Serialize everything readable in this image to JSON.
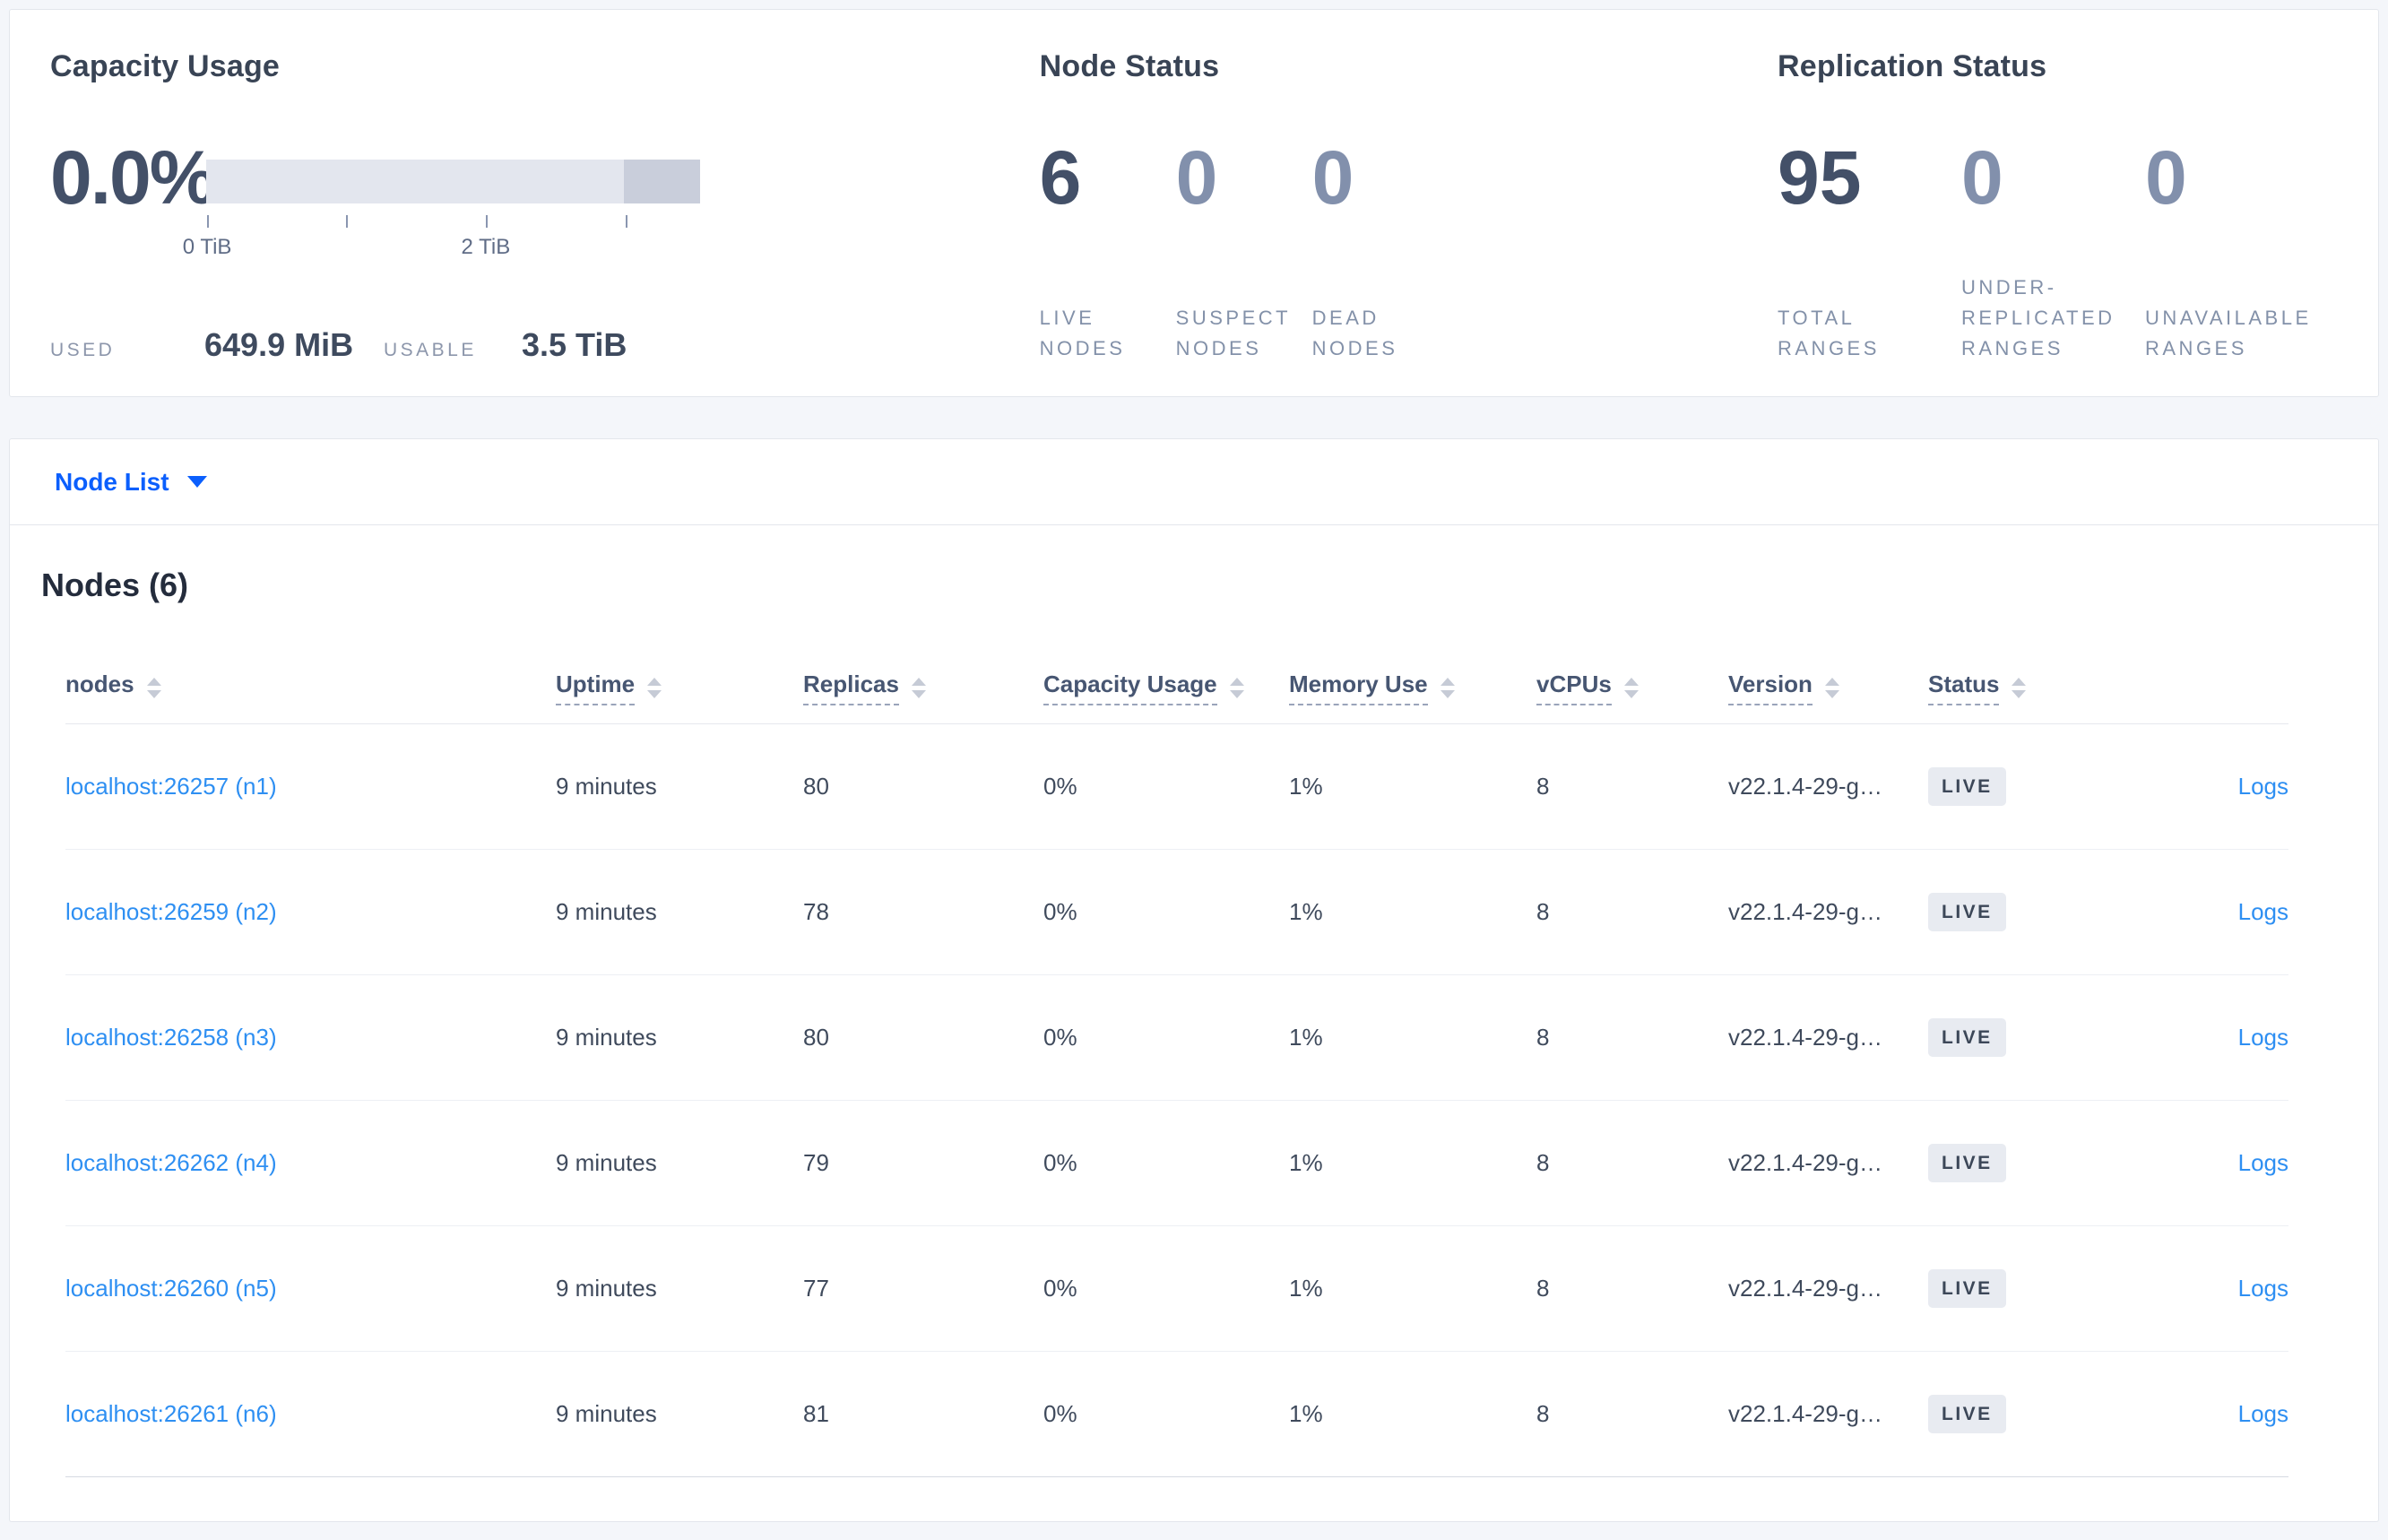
{
  "summary": {
    "capacity": {
      "title": "Capacity Usage",
      "percent": "0.0%",
      "used_label": "USED",
      "used_value": "649.9 MiB",
      "usable_label": "USABLE",
      "usable_value": "3.5 TiB",
      "meter": {
        "light_color": "#e3e6ee",
        "dark_color": "#c9cedb",
        "light_width": "84.6%",
        "dark_width": "15.4%",
        "ticks": [
          "0.2%",
          "28.3%",
          "56.6%",
          "84.9%"
        ],
        "tick_labels": [
          {
            "text": "0 TiB",
            "left": "0.2%"
          },
          {
            "text": "2 TiB",
            "left": "56.6%"
          }
        ]
      }
    },
    "node_status": {
      "title": "Node Status",
      "stats": [
        {
          "value": "6",
          "label": "LIVE NODES"
        },
        {
          "value": "0",
          "label": "SUSPECT NODES"
        },
        {
          "value": "0",
          "label": "DEAD NODES"
        }
      ]
    },
    "replication": {
      "title": "Replication Status",
      "stats": [
        {
          "value": "95",
          "label": "TOTAL RANGES"
        },
        {
          "value": "0",
          "label": "UNDER-REPLICATED RANGES"
        },
        {
          "value": "0",
          "label": "UNAVAILABLE RANGES"
        }
      ]
    }
  },
  "view_selector": {
    "label": "Node List"
  },
  "nodes_table": {
    "title": "Nodes (6)",
    "logs_label": "Logs",
    "columns": [
      {
        "label": "nodes"
      },
      {
        "label": "Uptime"
      },
      {
        "label": "Replicas"
      },
      {
        "label": "Capacity Usage"
      },
      {
        "label": "Memory Use"
      },
      {
        "label": "vCPUs"
      },
      {
        "label": "Version"
      },
      {
        "label": "Status"
      }
    ],
    "rows": [
      {
        "address": "localhost:26257 (n1)",
        "uptime": "9 minutes",
        "replicas": "80",
        "capacity_usage": "0%",
        "memory_use": "1%",
        "vcpus": "8",
        "version": "v22.1.4-29-g…",
        "status": "LIVE"
      },
      {
        "address": "localhost:26259 (n2)",
        "uptime": "9 minutes",
        "replicas": "78",
        "capacity_usage": "0%",
        "memory_use": "1%",
        "vcpus": "8",
        "version": "v22.1.4-29-g…",
        "status": "LIVE"
      },
      {
        "address": "localhost:26258 (n3)",
        "uptime": "9 minutes",
        "replicas": "80",
        "capacity_usage": "0%",
        "memory_use": "1%",
        "vcpus": "8",
        "version": "v22.1.4-29-g…",
        "status": "LIVE"
      },
      {
        "address": "localhost:26262 (n4)",
        "uptime": "9 minutes",
        "replicas": "79",
        "capacity_usage": "0%",
        "memory_use": "1%",
        "vcpus": "8",
        "version": "v22.1.4-29-g…",
        "status": "LIVE"
      },
      {
        "address": "localhost:26260 (n5)",
        "uptime": "9 minutes",
        "replicas": "77",
        "capacity_usage": "0%",
        "memory_use": "1%",
        "vcpus": "8",
        "version": "v22.1.4-29-g…",
        "status": "LIVE"
      },
      {
        "address": "localhost:26261 (n6)",
        "uptime": "9 minutes",
        "replicas": "81",
        "capacity_usage": "0%",
        "memory_use": "1%",
        "vcpus": "8",
        "version": "v22.1.4-29-g…",
        "status": "LIVE"
      }
    ]
  }
}
